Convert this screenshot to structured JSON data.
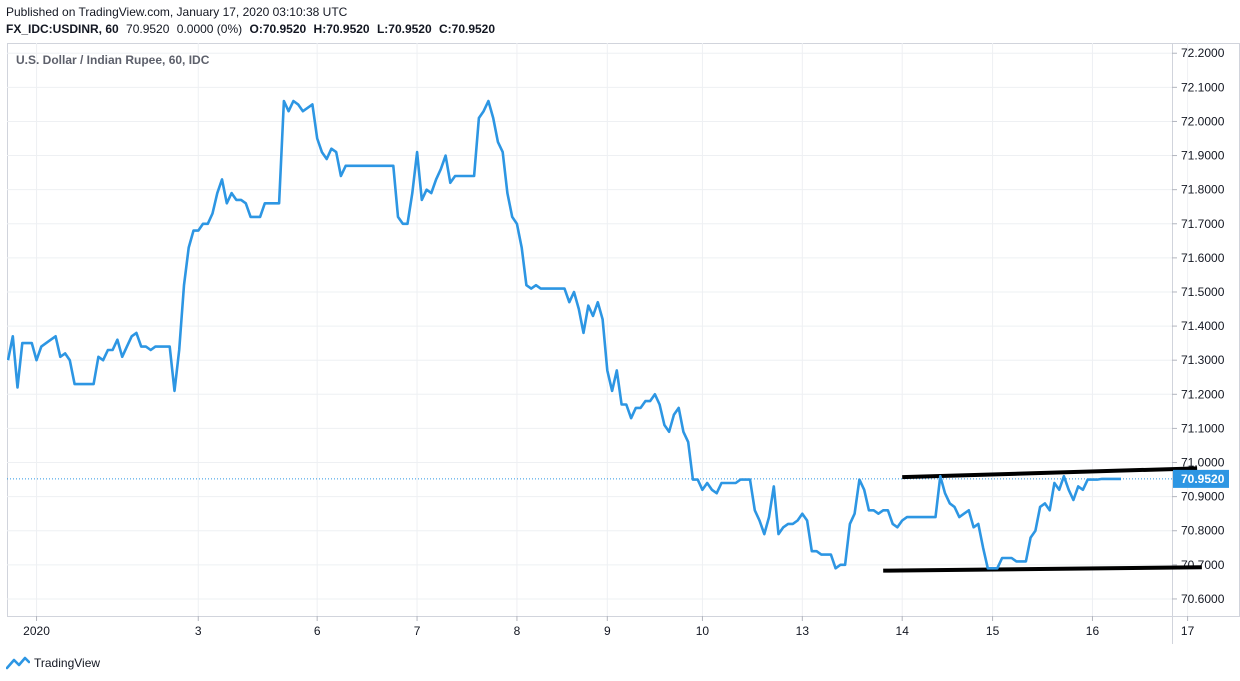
{
  "header": {
    "published": "Published on TradingView.com, January 17, 2020 03:10:38 UTC",
    "symbol": "FX_IDC:USDINR, 60",
    "last": "70.9520",
    "change": "0.0000 (0%)",
    "open": "O:70.9520",
    "high": "H:70.9520",
    "low": "L:70.9520",
    "close": "C:70.9520"
  },
  "footer": {
    "brand": "TradingView",
    "logo_icon": "tradingview-logo-icon"
  },
  "colors": {
    "line": "#2d96e3",
    "trendline": "#000000",
    "grid": "#eef0f3",
    "price_label_bg": "#2d96e3"
  },
  "chart_data": {
    "type": "line",
    "title": "U.S. Dollar / Indian Rupee, 60, IDC",
    "ylim": [
      70.55,
      72.23
    ],
    "y_ticks": [
      "72.2000",
      "72.1000",
      "72.0000",
      "71.9000",
      "71.8000",
      "71.7000",
      "71.6000",
      "71.5000",
      "71.4000",
      "71.3000",
      "71.2000",
      "71.1000",
      "71.0000",
      "70.9000",
      "70.8000",
      "70.7000",
      "70.6000"
    ],
    "x_ticks": [
      {
        "label": "2020",
        "i": 6
      },
      {
        "label": "3",
        "i": 40
      },
      {
        "label": "6",
        "i": 65
      },
      {
        "label": "7",
        "i": 86
      },
      {
        "label": "8",
        "i": 107
      },
      {
        "label": "9",
        "i": 126
      },
      {
        "label": "10",
        "i": 146
      },
      {
        "label": "13",
        "i": 167
      },
      {
        "label": "14",
        "i": 188
      },
      {
        "label": "15",
        "i": 207
      },
      {
        "label": "16",
        "i": 228
      },
      {
        "label": "17",
        "i": 248
      }
    ],
    "last_price": "70.9520",
    "grid": true,
    "series": [
      {
        "values": [
          71.3,
          71.37,
          71.22,
          71.35,
          71.35,
          71.35,
          71.3,
          71.34,
          71.35,
          71.36,
          71.37,
          71.31,
          71.32,
          71.3,
          71.23,
          71.23,
          71.23,
          71.23,
          71.23,
          71.31,
          71.3,
          71.33,
          71.33,
          71.36,
          71.31,
          71.34,
          71.37,
          71.38,
          71.34,
          71.34,
          71.33,
          71.34,
          71.34,
          71.34,
          71.34,
          71.21,
          71.33,
          71.52,
          71.63,
          71.68,
          71.68,
          71.7,
          71.7,
          71.73,
          71.79,
          71.83,
          71.76,
          71.79,
          71.77,
          71.77,
          71.76,
          71.72,
          71.72,
          71.72,
          71.76,
          71.76,
          71.76,
          71.76,
          72.06,
          72.03,
          72.06,
          72.05,
          72.03,
          72.04,
          72.05,
          71.95,
          71.91,
          71.89,
          71.92,
          71.91,
          71.84,
          71.87,
          71.87,
          71.87,
          71.87,
          71.87,
          71.87,
          71.87,
          71.87,
          71.87,
          71.87,
          71.87,
          71.72,
          71.7,
          71.7,
          71.79,
          71.91,
          71.77,
          71.8,
          71.79,
          71.83,
          71.86,
          71.9,
          71.82,
          71.84,
          71.84,
          71.84,
          71.84,
          71.84,
          72.01,
          72.03,
          72.06,
          72.01,
          71.94,
          71.91,
          71.79,
          71.72,
          71.7,
          71.63,
          71.52,
          71.51,
          71.52,
          71.51,
          71.51,
          71.51,
          71.51,
          71.51,
          71.51,
          71.47,
          71.5,
          71.45,
          71.38,
          71.46,
          71.43,
          71.47,
          71.42,
          71.27,
          71.21,
          71.27,
          71.17,
          71.17,
          71.13,
          71.16,
          71.16,
          71.18,
          71.18,
          71.2,
          71.17,
          71.11,
          71.09,
          71.14,
          71.16,
          71.09,
          71.06,
          70.95,
          70.95,
          70.92,
          70.94,
          70.92,
          70.91,
          70.94,
          70.94,
          70.94,
          70.94,
          70.95,
          70.95,
          70.95,
          70.86,
          70.83,
          70.79,
          70.84,
          70.93,
          70.79,
          70.81,
          70.82,
          70.82,
          70.83,
          70.85,
          70.83,
          70.74,
          70.74,
          70.73,
          70.73,
          70.73,
          70.69,
          70.7,
          70.7,
          70.82,
          70.85,
          70.95,
          70.92,
          70.86,
          70.86,
          70.85,
          70.86,
          70.86,
          70.82,
          70.81,
          70.83,
          70.84,
          70.84,
          70.84,
          70.84,
          70.84,
          70.84,
          70.84,
          70.96,
          70.91,
          70.88,
          70.87,
          70.84,
          70.85,
          70.86,
          70.81,
          70.82,
          70.75,
          70.69,
          70.69,
          70.69,
          70.72,
          70.72,
          70.72,
          70.71,
          70.71,
          70.71,
          70.78,
          70.8,
          70.87,
          70.88,
          70.86,
          70.94,
          70.92,
          70.96,
          70.92,
          70.89,
          70.93,
          70.92,
          70.95,
          70.95,
          70.95,
          70.952,
          70.952,
          70.952,
          70.952,
          70.952
        ]
      }
    ],
    "trendlines": [
      {
        "from_i": 188,
        "from_y": 70.957,
        "to_i": 250,
        "to_y": 70.983
      },
      {
        "from_i": 184,
        "from_y": 70.683,
        "to_i": 251,
        "to_y": 70.693
      }
    ]
  }
}
